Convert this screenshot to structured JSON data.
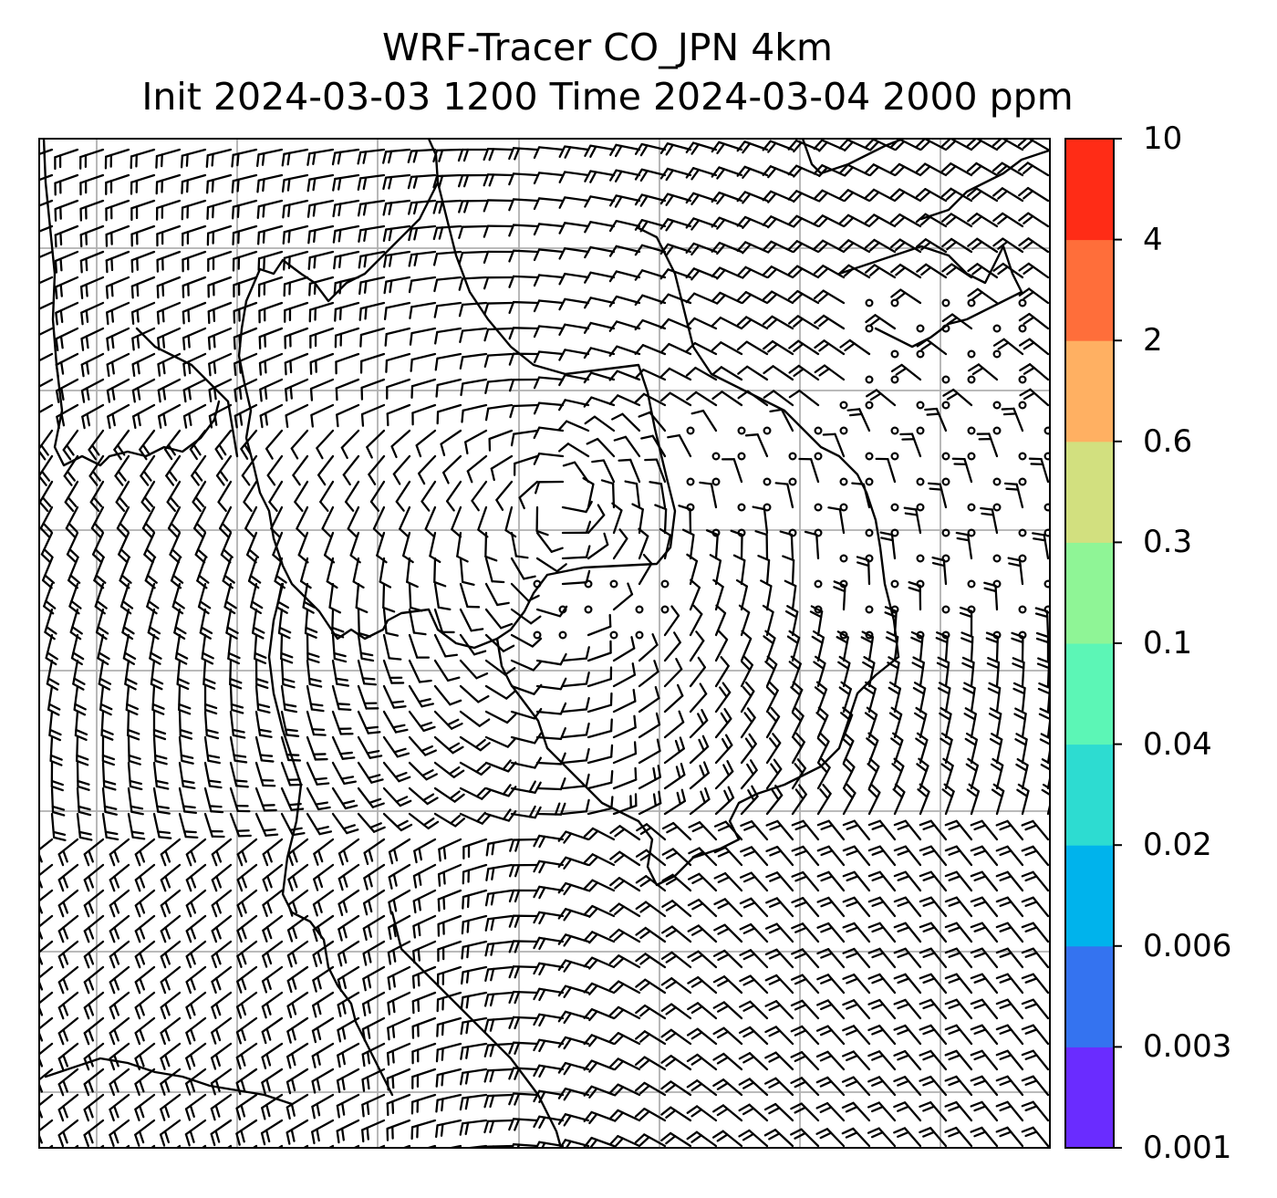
{
  "title": {
    "line1": "WRF-Tracer CO_JPN 4km",
    "line2": "Init 2024-03-03 1200 Time 2024-03-04 2000 ppm"
  },
  "colorbar": {
    "levels": [
      "0.001",
      "0.003",
      "0.006",
      "0.02",
      "0.04",
      "0.1",
      "0.3",
      "0.6",
      "2",
      "4",
      "10"
    ],
    "colors": [
      "#6a2cff",
      "#3473f0",
      "#00b3ec",
      "#2ddcd1",
      "#5cf6b6",
      "#8ff596",
      "#d2e07f",
      "#ffb062",
      "#ff6e3a",
      "#ff2c16"
    ]
  },
  "map": {
    "background": "#ffffff",
    "gridline_color": "#b0b0b0",
    "wind_barb_color": "#000000",
    "coastline_color": "#000000"
  }
}
